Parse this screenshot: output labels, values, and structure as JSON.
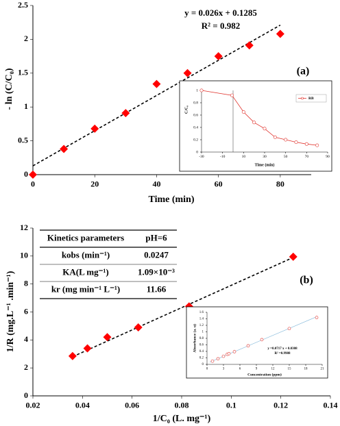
{
  "chart_data": [
    {
      "type": "scatter",
      "panel_label": "(a)",
      "x_label": "Time (min)",
      "y_label": "- ln (C/C₀)",
      "x": [
        0,
        10,
        20,
        30,
        40,
        50,
        60,
        70,
        80
      ],
      "series": [
        {
          "color": "#ff0000",
          "marker": "diamond",
          "values": [
            0,
            0.38,
            0.68,
            0.91,
            1.34,
            1.5,
            1.75,
            1.91,
            2.08
          ]
        }
      ],
      "trendline": {
        "x": [
          0,
          80
        ],
        "y": [
          0.13,
          2.21
        ],
        "style": "dashed",
        "color": "#000000"
      },
      "annotations": [
        "y = 0.026x + 0.1285",
        "R² = 0.982"
      ],
      "xlim": [
        0,
        90
      ],
      "ylim": [
        0,
        2.5
      ],
      "xticks": [
        0,
        20,
        40,
        60,
        80
      ],
      "yticks": [
        0,
        0.5,
        1,
        1.5,
        2,
        2.5
      ]
    },
    {
      "type": "line",
      "x_label": "Time (min)",
      "y_label": "C/C₀",
      "x": [
        -30,
        -1,
        10,
        20,
        30,
        40,
        50,
        60,
        70,
        80
      ],
      "series": [
        {
          "name": "RB",
          "color": "#e0302a",
          "marker": "circle-open",
          "values": [
            1,
            0.92,
            0.65,
            0.48,
            0.38,
            0.24,
            0.2,
            0.16,
            0.13,
            0.11
          ]
        }
      ],
      "vline": 0,
      "legend": "upper right",
      "xlim": [
        -30,
        90
      ],
      "ylim": [
        0,
        1
      ],
      "xticks": [
        -30,
        -10,
        10,
        30,
        50,
        70,
        90
      ],
      "yticks": [
        0,
        0.2,
        0.4,
        0.6,
        0.8,
        1
      ]
    },
    {
      "type": "scatter",
      "panel_label": "(b)",
      "x_label": "1/C₀ (L. mg⁻¹)",
      "y_label": "1/R (mg.L⁻¹ .min⁻¹)",
      "x": [
        0.036,
        0.042,
        0.05,
        0.0625,
        0.083,
        0.125
      ],
      "series": [
        {
          "color": "#ff0000",
          "marker": "diamond",
          "values": [
            2.85,
            3.4,
            4.2,
            4.9,
            6.4,
            9.95
          ]
        }
      ],
      "trendline": {
        "x": [
          0.036,
          0.125
        ],
        "y": [
          2.8,
          9.9
        ],
        "style": "dashed",
        "color": "#000000"
      },
      "table": {
        "header": [
          "Kinetics parameters",
          "pH=6"
        ],
        "rows": [
          [
            "kobs (min⁻¹)",
            "0.0247"
          ],
          [
            "KA(L mg⁻¹)",
            "1.09×10⁻³"
          ],
          [
            "kr (mg min⁻¹ L⁻¹)",
            "11.66"
          ]
        ]
      },
      "xlim": [
        0.02,
        0.14
      ],
      "ylim": [
        0,
        12
      ],
      "xticks": [
        0.02,
        0.04,
        0.06,
        0.08,
        0.1,
        0.12,
        0.14
      ],
      "yticks": [
        0,
        2,
        4,
        6,
        8,
        10,
        12
      ]
    },
    {
      "type": "scatter",
      "x_label": "Concentration (ppm)",
      "y_label": "Absorbance (a. u)",
      "x": [
        1,
        2,
        3,
        3.7,
        4,
        5,
        7.5,
        10,
        15,
        20
      ],
      "series": [
        {
          "color": "#e0302a",
          "marker": "circle-open",
          "values": [
            0.1,
            0.17,
            0.25,
            0.31,
            0.33,
            0.39,
            0.57,
            0.76,
            1.1,
            1.44
          ]
        }
      ],
      "trendline": {
        "x": [
          0.5,
          20
        ],
        "y": [
          0.067,
          1.465
        ],
        "style": "solid",
        "color": "#7fb6d9"
      },
      "annotations": [
        "y =0.0717 x + 0.0308",
        "R² =0.9988"
      ],
      "xlim": [
        0,
        21
      ],
      "ylim": [
        0,
        1.6
      ],
      "xticks": [
        0,
        3,
        6,
        9,
        12,
        15,
        18,
        21
      ],
      "yticks": [
        0,
        0.2,
        0.4,
        0.6,
        0.8,
        1,
        1.2,
        1.4,
        1.6
      ]
    }
  ]
}
